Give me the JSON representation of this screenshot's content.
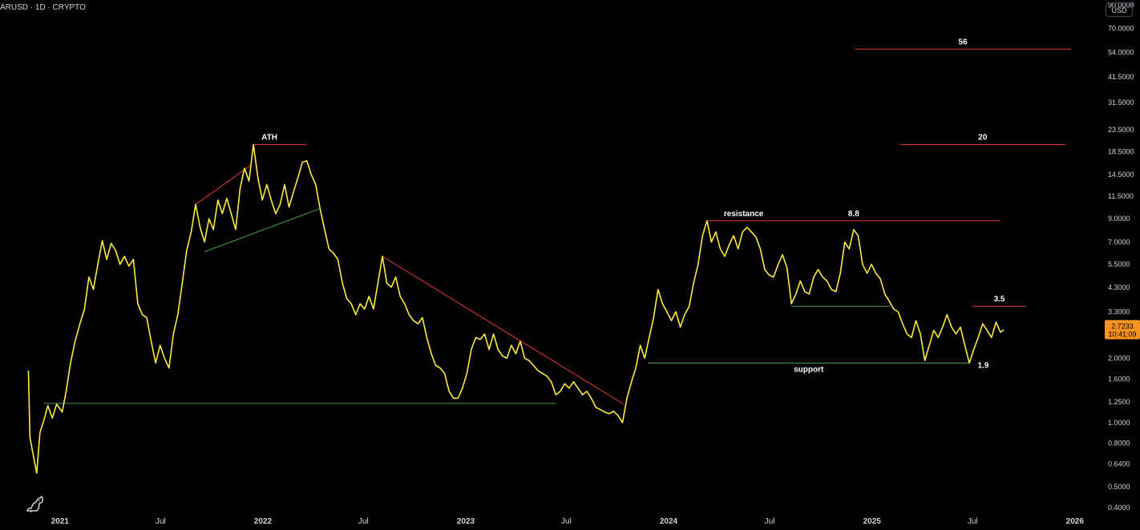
{
  "symbol_title": "ARUSD · 1D · CRYPTO",
  "currency_button": "USD",
  "last_price": {
    "value": "2.7233",
    "countdown": "10:41:09"
  },
  "colors": {
    "background": "#000000",
    "price_line": "#ffeb3b",
    "resistance": "#e53935",
    "support": "#43a047",
    "text": "#d1d4dc",
    "price_badge": "#f7931a"
  },
  "logo_icon": "tradingview-dino-logo",
  "chart_data": {
    "type": "line",
    "scale": "log",
    "grid": false,
    "ylim": [
      0.38,
      95
    ],
    "xlim": [
      "2020-09-15",
      "2026-02-15"
    ],
    "y_ticks": [
      "90.0000",
      "70.0000",
      "54.0000",
      "41.5000",
      "31.5000",
      "23.5000",
      "18.5000",
      "14.5000",
      "11.5000",
      "9.0000",
      "7.0000",
      "5.5000",
      "4.3000",
      "3.3000",
      "2.6000",
      "2.0000",
      "1.6000",
      "1.2500",
      "1.0000",
      "0.8000",
      "0.6400",
      "0.5000",
      "0.4000"
    ],
    "x_ticks": [
      {
        "label": "2021",
        "date": "2021-01-01"
      },
      {
        "label": "Jul",
        "date": "2021-07-01"
      },
      {
        "label": "2022",
        "date": "2022-01-01"
      },
      {
        "label": "Jul",
        "date": "2022-07-01"
      },
      {
        "label": "2023",
        "date": "2023-01-01"
      },
      {
        "label": "Jul",
        "date": "2023-07-01"
      },
      {
        "label": "2024",
        "date": "2024-01-01"
      },
      {
        "label": "Jul",
        "date": "2024-07-01"
      },
      {
        "label": "2025",
        "date": "2025-01-01"
      },
      {
        "label": "Jul",
        "date": "2025-07-01"
      },
      {
        "label": "2026",
        "date": "2026-01-01"
      }
    ],
    "series": [
      {
        "points": [
          [
            "2020-11-05",
            1.75
          ],
          [
            "2020-11-08",
            0.85
          ],
          [
            "2020-11-14",
            0.7
          ],
          [
            "2020-11-20",
            0.58
          ],
          [
            "2020-11-26",
            0.9
          ],
          [
            "2020-12-04",
            1.05
          ],
          [
            "2020-12-10",
            1.2
          ],
          [
            "2020-12-18",
            1.05
          ],
          [
            "2020-12-26",
            1.22
          ],
          [
            "2021-01-05",
            1.12
          ],
          [
            "2021-01-12",
            1.4
          ],
          [
            "2021-01-20",
            1.9
          ],
          [
            "2021-01-28",
            2.4
          ],
          [
            "2021-02-05",
            2.85
          ],
          [
            "2021-02-14",
            3.4
          ],
          [
            "2021-02-22",
            4.8
          ],
          [
            "2021-03-02",
            4.2
          ],
          [
            "2021-03-10",
            5.5
          ],
          [
            "2021-03-18",
            7.1
          ],
          [
            "2021-03-26",
            5.8
          ],
          [
            "2021-04-03",
            6.9
          ],
          [
            "2021-04-11",
            6.4
          ],
          [
            "2021-04-19",
            5.5
          ],
          [
            "2021-04-27",
            6.0
          ],
          [
            "2021-05-05",
            5.4
          ],
          [
            "2021-05-13",
            5.8
          ],
          [
            "2021-05-21",
            3.6
          ],
          [
            "2021-05-29",
            3.2
          ],
          [
            "2021-06-06",
            3.1
          ],
          [
            "2021-06-14",
            2.4
          ],
          [
            "2021-06-22",
            1.9
          ],
          [
            "2021-06-30",
            2.3
          ],
          [
            "2021-07-08",
            2.0
          ],
          [
            "2021-07-16",
            1.8
          ],
          [
            "2021-07-24",
            2.6
          ],
          [
            "2021-08-01",
            3.2
          ],
          [
            "2021-08-09",
            4.5
          ],
          [
            "2021-08-17",
            6.4
          ],
          [
            "2021-08-25",
            7.8
          ],
          [
            "2021-09-02",
            10.5
          ],
          [
            "2021-09-10",
            8.2
          ],
          [
            "2021-09-18",
            7.0
          ],
          [
            "2021-09-26",
            9.0
          ],
          [
            "2021-10-04",
            8.0
          ],
          [
            "2021-10-12",
            11.0
          ],
          [
            "2021-10-20",
            9.5
          ],
          [
            "2021-10-28",
            11.2
          ],
          [
            "2021-11-05",
            9.5
          ],
          [
            "2021-11-13",
            8.0
          ],
          [
            "2021-11-21",
            12.5
          ],
          [
            "2021-11-29",
            15.5
          ],
          [
            "2021-12-07",
            13.5
          ],
          [
            "2021-12-15",
            20.0
          ],
          [
            "2021-12-23",
            14.0
          ],
          [
            "2021-12-31",
            11.0
          ],
          [
            "2022-01-08",
            13.0
          ],
          [
            "2022-01-16",
            11.0
          ],
          [
            "2022-01-24",
            9.5
          ],
          [
            "2022-02-01",
            10.5
          ],
          [
            "2022-02-09",
            13.0
          ],
          [
            "2022-02-17",
            10.2
          ],
          [
            "2022-02-25",
            12.0
          ],
          [
            "2022-03-05",
            14.0
          ],
          [
            "2022-03-13",
            16.5
          ],
          [
            "2022-03-21",
            16.8
          ],
          [
            "2022-03-29",
            14.5
          ],
          [
            "2022-04-06",
            13.0
          ],
          [
            "2022-04-14",
            10.0
          ],
          [
            "2022-04-22",
            8.0
          ],
          [
            "2022-04-30",
            6.5
          ],
          [
            "2022-05-08",
            6.2
          ],
          [
            "2022-05-16",
            5.8
          ],
          [
            "2022-05-24",
            4.5
          ],
          [
            "2022-06-01",
            3.8
          ],
          [
            "2022-06-09",
            3.6
          ],
          [
            "2022-06-17",
            3.2
          ],
          [
            "2022-06-25",
            3.6
          ],
          [
            "2022-07-03",
            3.4
          ],
          [
            "2022-07-11",
            3.9
          ],
          [
            "2022-07-19",
            3.4
          ],
          [
            "2022-07-27",
            4.5
          ],
          [
            "2022-08-04",
            6.0
          ],
          [
            "2022-08-12",
            4.5
          ],
          [
            "2022-08-20",
            4.3
          ],
          [
            "2022-08-28",
            4.8
          ],
          [
            "2022-09-05",
            3.9
          ],
          [
            "2022-09-13",
            3.6
          ],
          [
            "2022-09-21",
            3.2
          ],
          [
            "2022-09-29",
            3.0
          ],
          [
            "2022-10-07",
            2.9
          ],
          [
            "2022-10-15",
            3.1
          ],
          [
            "2022-10-23",
            2.5
          ],
          [
            "2022-10-31",
            2.1
          ],
          [
            "2022-11-08",
            1.85
          ],
          [
            "2022-11-16",
            1.8
          ],
          [
            "2022-11-24",
            1.7
          ],
          [
            "2022-12-02",
            1.4
          ],
          [
            "2022-12-10",
            1.3
          ],
          [
            "2022-12-18",
            1.3
          ],
          [
            "2022-12-26",
            1.45
          ],
          [
            "2023-01-03",
            1.7
          ],
          [
            "2023-01-11",
            2.2
          ],
          [
            "2023-01-19",
            2.5
          ],
          [
            "2023-01-27",
            2.45
          ],
          [
            "2023-02-04",
            2.6
          ],
          [
            "2023-02-12",
            2.2
          ],
          [
            "2023-02-20",
            2.6
          ],
          [
            "2023-02-28",
            2.2
          ],
          [
            "2023-03-08",
            2.05
          ],
          [
            "2023-03-16",
            2.0
          ],
          [
            "2023-03-24",
            2.3
          ],
          [
            "2023-04-01",
            2.1
          ],
          [
            "2023-04-09",
            2.4
          ],
          [
            "2023-04-17",
            2.0
          ],
          [
            "2023-04-25",
            1.95
          ],
          [
            "2023-05-03",
            1.85
          ],
          [
            "2023-05-11",
            1.75
          ],
          [
            "2023-05-19",
            1.7
          ],
          [
            "2023-05-27",
            1.65
          ],
          [
            "2023-06-04",
            1.55
          ],
          [
            "2023-06-12",
            1.35
          ],
          [
            "2023-06-20",
            1.4
          ],
          [
            "2023-06-28",
            1.52
          ],
          [
            "2023-07-06",
            1.45
          ],
          [
            "2023-07-14",
            1.55
          ],
          [
            "2023-07-22",
            1.45
          ],
          [
            "2023-07-30",
            1.35
          ],
          [
            "2023-08-07",
            1.4
          ],
          [
            "2023-08-15",
            1.3
          ],
          [
            "2023-08-23",
            1.18
          ],
          [
            "2023-08-31",
            1.15
          ],
          [
            "2023-09-08",
            1.12
          ],
          [
            "2023-09-16",
            1.1
          ],
          [
            "2023-09-24",
            1.13
          ],
          [
            "2023-10-02",
            1.08
          ],
          [
            "2023-10-10",
            1.0
          ],
          [
            "2023-10-18",
            1.3
          ],
          [
            "2023-10-26",
            1.55
          ],
          [
            "2023-11-03",
            1.8
          ],
          [
            "2023-11-11",
            2.3
          ],
          [
            "2023-11-19",
            2.0
          ],
          [
            "2023-11-27",
            2.5
          ],
          [
            "2023-12-05",
            3.1
          ],
          [
            "2023-12-13",
            4.2
          ],
          [
            "2023-12-21",
            3.6
          ],
          [
            "2023-12-29",
            3.3
          ],
          [
            "2024-01-06",
            3.0
          ],
          [
            "2024-01-14",
            3.3
          ],
          [
            "2024-01-22",
            2.8
          ],
          [
            "2024-01-30",
            3.2
          ],
          [
            "2024-02-07",
            3.5
          ],
          [
            "2024-02-15",
            4.5
          ],
          [
            "2024-02-23",
            5.5
          ],
          [
            "2024-03-02",
            7.5
          ],
          [
            "2024-03-10",
            8.8
          ],
          [
            "2024-03-18",
            7.0
          ],
          [
            "2024-03-26",
            7.8
          ],
          [
            "2024-04-03",
            6.5
          ],
          [
            "2024-04-11",
            6.0
          ],
          [
            "2024-04-19",
            6.8
          ],
          [
            "2024-04-27",
            7.5
          ],
          [
            "2024-05-05",
            6.5
          ],
          [
            "2024-05-13",
            7.8
          ],
          [
            "2024-05-21",
            8.2
          ],
          [
            "2024-05-29",
            7.8
          ],
          [
            "2024-06-06",
            7.4
          ],
          [
            "2024-06-14",
            6.5
          ],
          [
            "2024-06-22",
            5.2
          ],
          [
            "2024-06-30",
            4.9
          ],
          [
            "2024-07-08",
            4.8
          ],
          [
            "2024-07-16",
            5.5
          ],
          [
            "2024-07-24",
            6.1
          ],
          [
            "2024-08-01",
            5.3
          ],
          [
            "2024-08-09",
            3.6
          ],
          [
            "2024-08-17",
            4.0
          ],
          [
            "2024-08-25",
            4.6
          ],
          [
            "2024-09-02",
            4.1
          ],
          [
            "2024-09-10",
            4.0
          ],
          [
            "2024-09-18",
            4.8
          ],
          [
            "2024-09-26",
            5.2
          ],
          [
            "2024-10-04",
            4.8
          ],
          [
            "2024-10-12",
            4.6
          ],
          [
            "2024-10-20",
            4.2
          ],
          [
            "2024-10-28",
            4.1
          ],
          [
            "2024-11-05",
            5.0
          ],
          [
            "2024-11-13",
            7.0
          ],
          [
            "2024-11-21",
            6.5
          ],
          [
            "2024-11-29",
            8.0
          ],
          [
            "2024-12-07",
            7.5
          ],
          [
            "2024-12-15",
            5.5
          ],
          [
            "2024-12-23",
            5.0
          ],
          [
            "2024-12-31",
            5.5
          ],
          [
            "2025-01-08",
            5.0
          ],
          [
            "2025-01-16",
            4.7
          ],
          [
            "2025-01-24",
            4.0
          ],
          [
            "2025-02-01",
            3.7
          ],
          [
            "2025-02-09",
            3.4
          ],
          [
            "2025-02-17",
            3.3
          ],
          [
            "2025-02-25",
            2.9
          ],
          [
            "2025-03-05",
            2.6
          ],
          [
            "2025-03-13",
            2.5
          ],
          [
            "2025-03-21",
            3.0
          ],
          [
            "2025-03-29",
            2.6
          ],
          [
            "2025-04-06",
            1.95
          ],
          [
            "2025-04-14",
            2.3
          ],
          [
            "2025-04-22",
            2.7
          ],
          [
            "2025-04-30",
            2.5
          ],
          [
            "2025-05-08",
            2.8
          ],
          [
            "2025-05-16",
            3.2
          ],
          [
            "2025-05-24",
            2.8
          ],
          [
            "2025-06-01",
            2.6
          ],
          [
            "2025-06-09",
            2.8
          ],
          [
            "2025-06-17",
            2.3
          ],
          [
            "2025-06-25",
            1.9
          ],
          [
            "2025-07-03",
            2.2
          ],
          [
            "2025-07-11",
            2.5
          ],
          [
            "2025-07-19",
            2.9
          ],
          [
            "2025-07-27",
            2.7
          ],
          [
            "2025-08-04",
            2.5
          ],
          [
            "2025-08-12",
            2.95
          ],
          [
            "2025-08-20",
            2.65
          ],
          [
            "2025-08-26",
            2.72
          ]
        ]
      }
    ],
    "annotations": [
      {
        "type": "hline",
        "label": "ATH",
        "y": 20.0,
        "x_start": "2021-12-15",
        "x_end": "2022-03-20",
        "color": "#e53935",
        "label_side": "above-left"
      },
      {
        "type": "hline",
        "label": "56",
        "y": 56.0,
        "x_start": "2024-12-01",
        "x_end": "2025-12-25",
        "color": "#e53935",
        "label_side": "above-center"
      },
      {
        "type": "hline",
        "label": "20",
        "y": 20.0,
        "x_start": "2025-02-20",
        "x_end": "2025-12-15",
        "color": "#e53935",
        "label_side": "above-center"
      },
      {
        "type": "hline",
        "label": "8.8",
        "y": 8.8,
        "x_start": "2024-03-10",
        "x_end": "2025-08-20",
        "color": "#e53935",
        "label_side": "above-center"
      },
      {
        "type": "hline",
        "label": "3.5",
        "y": 3.5,
        "x_start": "2025-07-01",
        "x_end": "2025-10-05",
        "color": "#e53935",
        "label_side": "above-center"
      },
      {
        "type": "hline",
        "label": "support",
        "y": 1.9,
        "x_start": "2023-11-25",
        "x_end": "2025-06-25",
        "color": "#43a047",
        "label_side": "below-center"
      },
      {
        "type": "hline",
        "label": "",
        "y": 3.5,
        "x_start": "2024-08-09",
        "x_end": "2025-02-03",
        "color": "#43a047"
      },
      {
        "type": "hline",
        "label": "",
        "y": 1.23,
        "x_start": "2020-12-03",
        "x_end": "2023-06-12",
        "color": "#43a047"
      },
      {
        "type": "trend",
        "points": [
          [
            "2021-09-02",
            10.5
          ],
          [
            "2021-12-10",
            16.0
          ]
        ],
        "color": "#e53935"
      },
      {
        "type": "trend",
        "points": [
          [
            "2021-09-18",
            6.3
          ],
          [
            "2022-04-12",
            10.0
          ]
        ],
        "color": "#43a047"
      },
      {
        "type": "trend",
        "points": [
          [
            "2022-08-04",
            6.0
          ],
          [
            "2023-10-12",
            1.22
          ]
        ],
        "color": "#e53935"
      }
    ],
    "text_labels": [
      {
        "text": "resistance",
        "x": "2024-05-15",
        "y": 8.8,
        "color": "#ffffff"
      },
      {
        "text": "1.9",
        "x": "2025-07-20",
        "y": 1.9,
        "color": "#ffffff"
      }
    ]
  }
}
